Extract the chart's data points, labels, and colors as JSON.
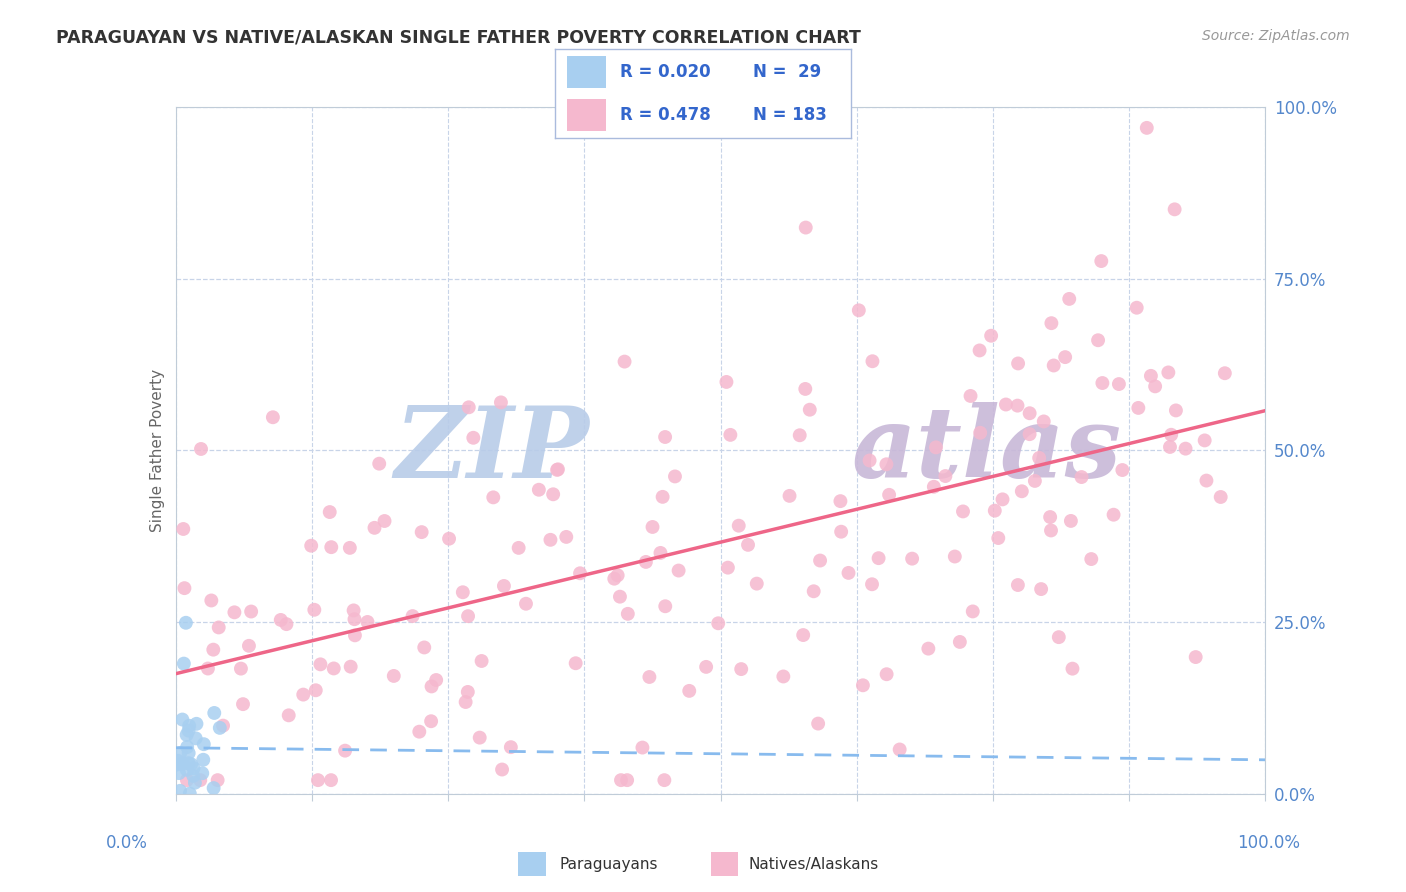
{
  "title": "PARAGUAYAN VS NATIVE/ALASKAN SINGLE FATHER POVERTY CORRELATION CHART",
  "source": "Source: ZipAtlas.com",
  "ylabel": "Single Father Poverty",
  "scatter_blue_color": "#a8cff0",
  "scatter_pink_color": "#f5b8ce",
  "line_blue_color": "#88bbee",
  "line_pink_color": "#ee6688",
  "watermark_zip_color": "#c8d8f0",
  "watermark_atlas_color": "#d8c8e8",
  "background_color": "#ffffff",
  "grid_color": "#c8d4e8",
  "axis_color": "#c0ccd8",
  "legend_text_color": "#3366cc",
  "title_color": "#333333",
  "ylabel_color": "#666666",
  "tick_color": "#5588cc"
}
